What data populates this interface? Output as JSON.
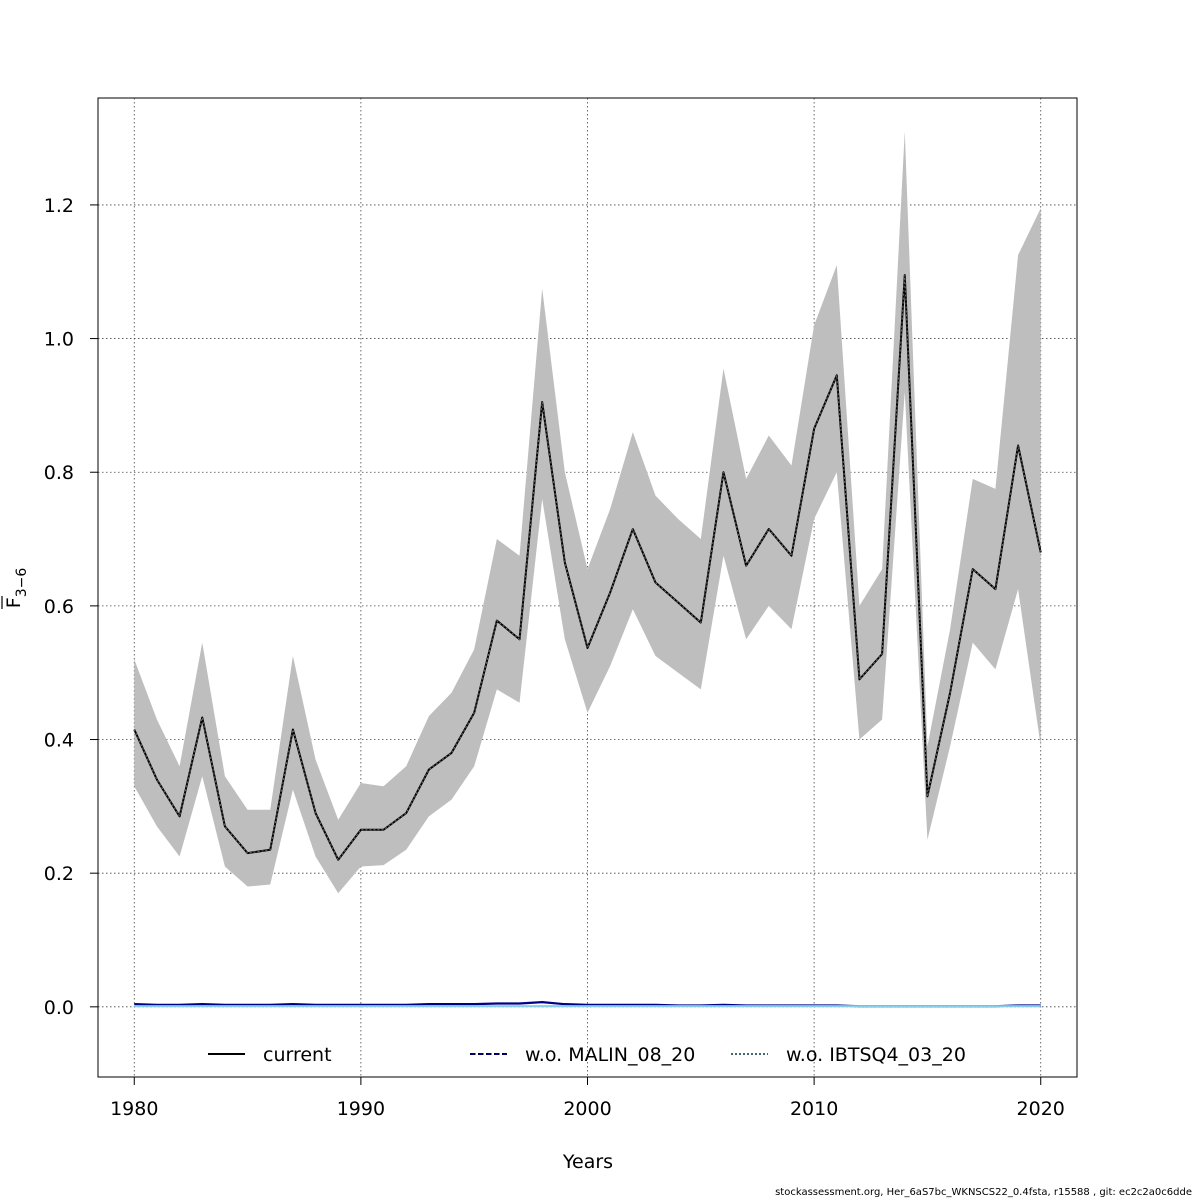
{
  "chart_data": {
    "type": "line",
    "xlabel": "Years",
    "ylabel_main": "F",
    "ylabel_sub": "3−6",
    "xlim": [
      1978.4,
      2021.6
    ],
    "ylim": [
      -0.105,
      1.36
    ],
    "x_ticks": [
      1980,
      1990,
      2000,
      2010,
      2020
    ],
    "y_ticks": [
      0.0,
      0.2,
      0.4,
      0.6,
      0.8,
      1.0,
      1.2
    ],
    "x_tick_labels": [
      "1980",
      "1990",
      "2000",
      "2010",
      "2020"
    ],
    "y_tick_labels": [
      "0.0",
      "0.2",
      "0.4",
      "0.6",
      "0.8",
      "1.0",
      "1.2"
    ],
    "grid": true,
    "legend_position": "bottom",
    "years": [
      1980,
      1981,
      1982,
      1983,
      1984,
      1985,
      1986,
      1987,
      1988,
      1989,
      1990,
      1991,
      1992,
      1993,
      1994,
      1995,
      1996,
      1997,
      1998,
      1999,
      2000,
      2001,
      2002,
      2003,
      2004,
      2005,
      2006,
      2007,
      2008,
      2009,
      2010,
      2011,
      2012,
      2013,
      2014,
      2015,
      2016,
      2017,
      2018,
      2019,
      2020
    ],
    "band": {
      "lower": [
        0.33,
        0.27,
        0.225,
        0.345,
        0.21,
        0.18,
        0.183,
        0.325,
        0.225,
        0.17,
        0.21,
        0.212,
        0.235,
        0.285,
        0.31,
        0.36,
        0.475,
        0.455,
        0.76,
        0.55,
        0.44,
        0.51,
        0.595,
        0.525,
        0.5,
        0.475,
        0.675,
        0.55,
        0.6,
        0.565,
        0.73,
        0.8,
        0.4,
        0.43,
        0.92,
        0.25,
        0.39,
        0.545,
        0.505,
        0.625,
        0.39
      ],
      "upper": [
        0.52,
        0.43,
        0.36,
        0.545,
        0.345,
        0.295,
        0.295,
        0.525,
        0.37,
        0.28,
        0.335,
        0.33,
        0.36,
        0.435,
        0.47,
        0.535,
        0.7,
        0.675,
        1.075,
        0.8,
        0.655,
        0.745,
        0.86,
        0.765,
        0.73,
        0.7,
        0.955,
        0.79,
        0.855,
        0.81,
        1.02,
        1.11,
        0.6,
        0.655,
        1.31,
        0.39,
        0.565,
        0.79,
        0.775,
        1.125,
        1.195
      ],
      "color": "#bebebe"
    },
    "series": [
      {
        "name": "current",
        "color": "#000000",
        "dash": "solid",
        "values": [
          0.415,
          0.34,
          0.285,
          0.433,
          0.27,
          0.23,
          0.235,
          0.415,
          0.29,
          0.22,
          0.265,
          0.265,
          0.29,
          0.355,
          0.38,
          0.44,
          0.578,
          0.55,
          0.905,
          0.665,
          0.537,
          0.62,
          0.715,
          0.635,
          0.605,
          0.575,
          0.8,
          0.66,
          0.715,
          0.675,
          0.865,
          0.945,
          0.49,
          0.528,
          1.095,
          0.315,
          0.47,
          0.655,
          0.625,
          0.84,
          0.68
        ]
      },
      {
        "name": "w.o. MALIN_08_20",
        "color": "#00008b",
        "dash": "dashed",
        "values": [
          0.004,
          0.003,
          0.003,
          0.004,
          0.003,
          0.003,
          0.003,
          0.004,
          0.003,
          0.003,
          0.003,
          0.003,
          0.003,
          0.004,
          0.004,
          0.004,
          0.005,
          0.005,
          0.007,
          0.004,
          0.003,
          0.003,
          0.003,
          0.003,
          0.002,
          0.002,
          0.003,
          0.002,
          0.002,
          0.002,
          0.002,
          0.002,
          0.001,
          0.001,
          0.001,
          0.001,
          0.001,
          0.001,
          0.001,
          0.002,
          0.002
        ]
      },
      {
        "name": "w.o. IBTSQ4_03_20",
        "color": "#87ceeb",
        "dash": "dotted",
        "values": [
          0.001,
          0.001,
          0.001,
          0.001,
          0.001,
          0.001,
          0.001,
          0.001,
          0.001,
          0.001,
          0.001,
          0.001,
          0.001,
          0.001,
          0.001,
          0.001,
          0.001,
          0.001,
          0.001,
          0.001,
          0.001,
          0.001,
          0.001,
          0.001,
          0.001,
          0.001,
          0.001,
          0.001,
          0.001,
          0.001,
          0.001,
          0.001,
          0.001,
          0.001,
          0.001,
          0.001,
          0.001,
          0.001,
          0.001,
          0.001,
          0.001
        ]
      }
    ],
    "legend": [
      "current",
      "w.o. MALIN_08_20",
      "w.o. IBTSQ4_03_20"
    ]
  },
  "footer": "stockassessment.org, Her_6aS7bc_WKNSCS22_0.4fsta, r15588 , git: ec2c2a0c6dde"
}
